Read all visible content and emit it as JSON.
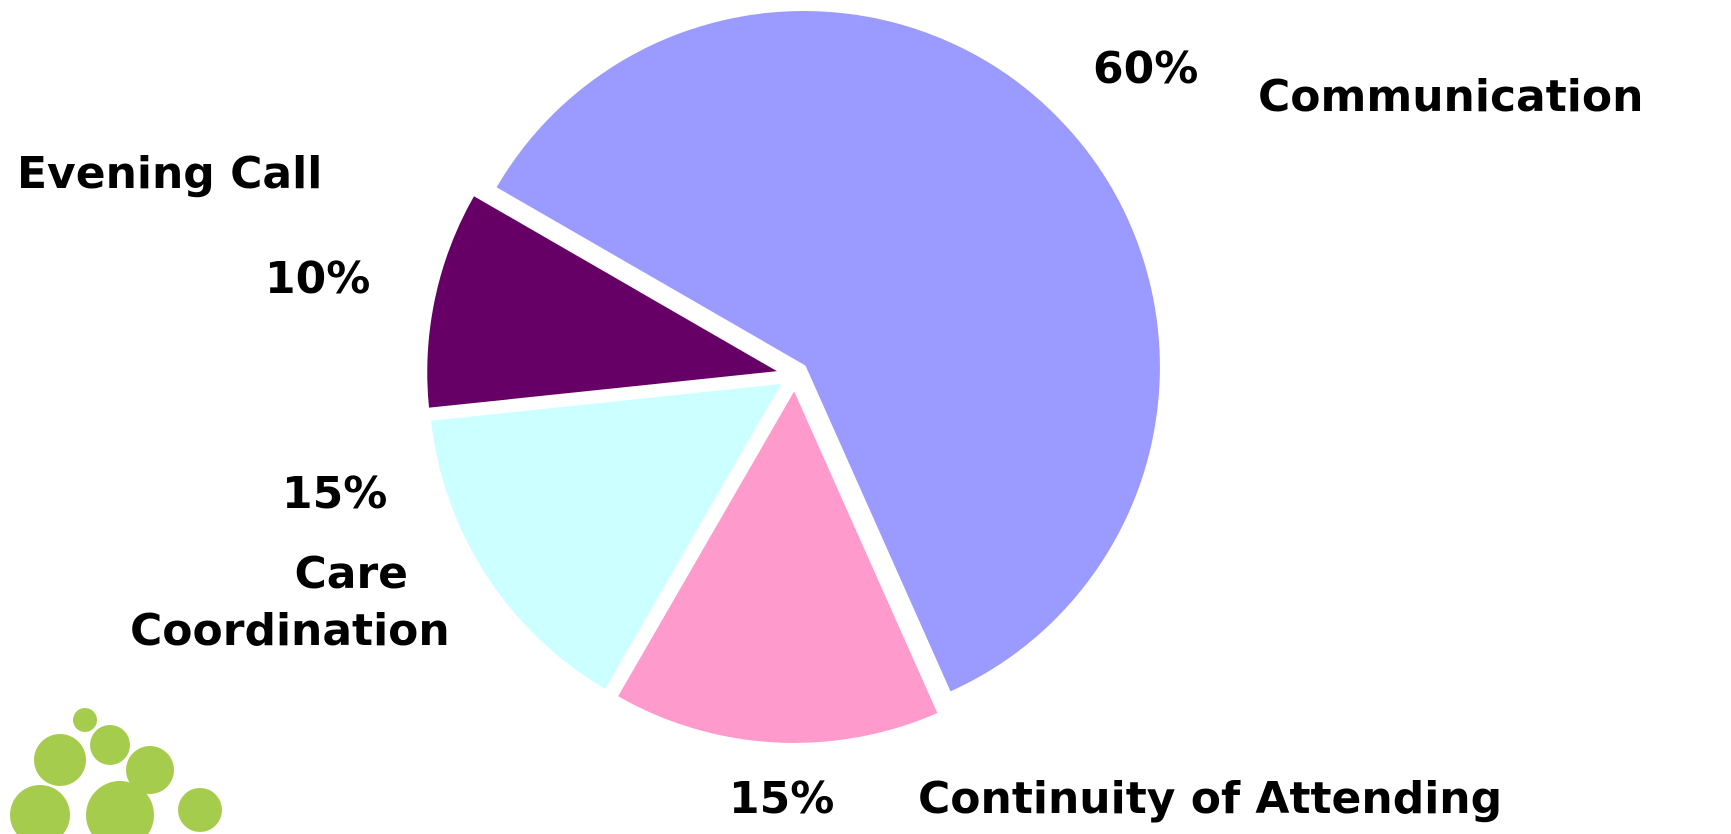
{
  "chart_data": {
    "type": "pie",
    "categories": [
      "Communication",
      "Continuity of Attending",
      "Care Coordination",
      "Evening Call"
    ],
    "values": [
      60,
      15,
      15,
      10
    ],
    "value_labels": [
      "60%",
      "15%",
      "15%",
      "10%"
    ],
    "colors": [
      "#9b9bff",
      "#ff9acc",
      "#ccffff",
      "#660066"
    ]
  }
}
